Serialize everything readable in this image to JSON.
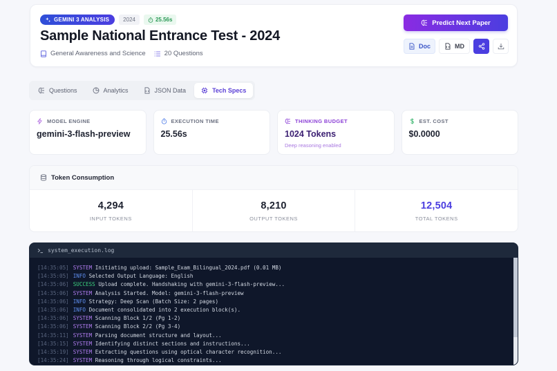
{
  "header": {
    "badges": {
      "ai": "GEMINI 3 ANALYSIS",
      "year": "2024",
      "time": "25.56s"
    },
    "title": "Sample National Entrance Test - 2024",
    "meta": {
      "subject": "General Awareness and Science",
      "questions": "20 Questions"
    },
    "predict_button": "Predict Next Paper",
    "actions": {
      "doc": "Doc",
      "md": "MD",
      "share_icon": "share-icon",
      "download_icon": "download-icon"
    }
  },
  "tabs": [
    {
      "label": "Questions",
      "icon": "brain-icon",
      "active": false
    },
    {
      "label": "Analytics",
      "icon": "pie-chart-icon",
      "active": false
    },
    {
      "label": "JSON Data",
      "icon": "file-code-icon",
      "active": false
    },
    {
      "label": "Tech Specs",
      "icon": "cpu-icon",
      "active": true
    }
  ],
  "stats": [
    {
      "label": "MODEL ENGINE",
      "value": "gemini-3-flash-preview",
      "icon": "zap-icon"
    },
    {
      "label": "EXECUTION TIME",
      "value": "25.56s",
      "icon": "timer-icon"
    },
    {
      "label": "THINKING BUDGET",
      "value": "1024 Tokens",
      "sub": "Deep reasoning enabled",
      "icon": "brain-icon"
    },
    {
      "label": "EST. COST",
      "value": "$0.0000",
      "icon": "dollar-icon"
    }
  ],
  "tokens": {
    "title": "Token Consumption",
    "input": {
      "value": "4,294",
      "label": "INPUT TOKENS"
    },
    "output": {
      "value": "8,210",
      "label": "OUTPUT TOKENS"
    },
    "total": {
      "value": "12,504",
      "label": "TOTAL TOKENS"
    }
  },
  "log": {
    "title": "system_execution.log",
    "lines": [
      {
        "ts": "[14:35:05]",
        "level": "SYSTEM",
        "msg": "Initiating upload: Sample_Exam_Bilingual_2024.pdf (0.01 MB)"
      },
      {
        "ts": "[14:35:05]",
        "level": "INFO",
        "msg": "Selected Output Language: English"
      },
      {
        "ts": "[14:35:06]",
        "level": "SUCCESS",
        "msg": "Upload complete. Handshaking with gemini-3-flash-preview..."
      },
      {
        "ts": "[14:35:06]",
        "level": "SYSTEM",
        "msg": "Analysis Started. Model: gemini-3-flash-preview"
      },
      {
        "ts": "[14:35:06]",
        "level": "INFO",
        "msg": "Strategy: Deep Scan (Batch Size: 2 pages)"
      },
      {
        "ts": "[14:35:06]",
        "level": "INFO",
        "msg": "Document consolidated into 2 execution block(s)."
      },
      {
        "ts": "[14:35:06]",
        "level": "SYSTEM",
        "msg": "Scanning Block 1/2 (Pg 1-2)"
      },
      {
        "ts": "[14:35:06]",
        "level": "SYSTEM",
        "msg": "Scanning Block 2/2 (Pg 3-4)"
      },
      {
        "ts": "[14:35:11]",
        "level": "SYSTEM",
        "msg": "Parsing document structure and layout..."
      },
      {
        "ts": "[14:35:15]",
        "level": "SYSTEM",
        "msg": "Identifying distinct sections and instructions..."
      },
      {
        "ts": "[14:35:19]",
        "level": "SYSTEM",
        "msg": "Extracting questions using optical character recognition..."
      },
      {
        "ts": "[14:35:24]",
        "level": "SYSTEM",
        "msg": "Reasoning through logical constraints..."
      }
    ]
  },
  "colors": {
    "accent": "#4b3ee0",
    "purple": "#8b3fd6",
    "success": "#2e9a58",
    "log_bg": "#0f172a"
  }
}
